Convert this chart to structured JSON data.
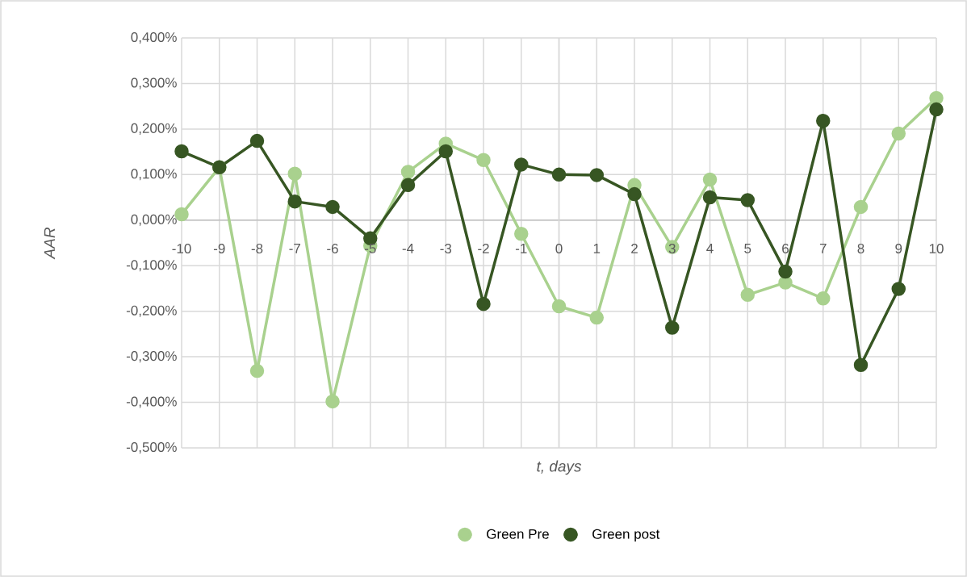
{
  "chart_data": {
    "type": "line",
    "xlabel": "t, days",
    "ylabel": "AAR",
    "x": [
      -10,
      -9,
      -8,
      -7,
      -6,
      -5,
      -4,
      -3,
      -2,
      -1,
      0,
      1,
      2,
      3,
      4,
      5,
      6,
      7,
      8,
      9,
      10
    ],
    "series": [
      {
        "name": "Green Pre",
        "color": "#a9d18e",
        "values": [
          0.013,
          0.116,
          -0.331,
          0.102,
          -0.398,
          -0.056,
          0.106,
          0.168,
          0.132,
          -0.03,
          -0.189,
          -0.214,
          0.077,
          -0.059,
          0.089,
          -0.164,
          -0.137,
          -0.172,
          0.029,
          0.19,
          0.268
        ]
      },
      {
        "name": "Green post",
        "color": "#375623",
        "values": [
          0.151,
          0.116,
          0.174,
          0.041,
          0.029,
          -0.04,
          0.077,
          0.151,
          -0.184,
          0.122,
          0.1,
          0.099,
          0.057,
          -0.236,
          0.05,
          0.044,
          -0.113,
          0.218,
          -0.318,
          -0.151,
          0.243
        ]
      }
    ],
    "xlim": [
      -10,
      10
    ],
    "xticks": [
      -10,
      -9,
      -8,
      -7,
      -6,
      -5,
      -4,
      -3,
      -2,
      -1,
      0,
      1,
      2,
      3,
      4,
      5,
      6,
      7,
      8,
      9,
      10
    ],
    "ylim": [
      -0.5,
      0.4
    ],
    "yticks": [
      {
        "value": -0.5,
        "label": "-0,500%"
      },
      {
        "value": -0.4,
        "label": "-0,400%"
      },
      {
        "value": -0.3,
        "label": "-0,300%"
      },
      {
        "value": -0.2,
        "label": "-0,200%"
      },
      {
        "value": -0.1,
        "label": "-0,100%"
      },
      {
        "value": 0,
        "label": "0,000%"
      },
      {
        "value": 0.1,
        "label": "0,100%"
      },
      {
        "value": 0.2,
        "label": "0,200%"
      },
      {
        "value": 0.3,
        "label": "0,300%"
      },
      {
        "value": 0.4,
        "label": "0,400%"
      }
    ],
    "grid": true,
    "legend": "bottom",
    "marker": "circle",
    "line_style": "solid"
  }
}
